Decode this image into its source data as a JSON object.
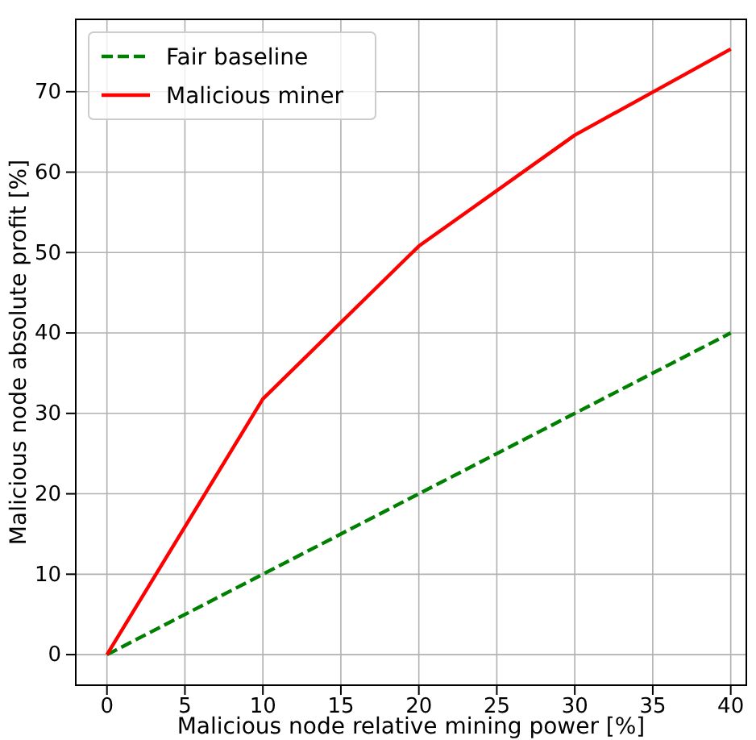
{
  "chart_data": {
    "type": "line",
    "xlabel": "Malicious node relative mining power [%]",
    "ylabel": "Malicious node absolute profit [%]",
    "x": [
      0,
      10,
      20,
      30,
      40
    ],
    "series": [
      {
        "name": "Fair baseline",
        "color": "#008000",
        "values": [
          0,
          10,
          20,
          30,
          40
        ],
        "line_style": "dashed"
      },
      {
        "name": "Malicious miner",
        "color": "#ff0000",
        "values": [
          0,
          31.8,
          50.8,
          64.6,
          75.3
        ],
        "line_style": "solid"
      }
    ],
    "xlim": [
      -2,
      41
    ],
    "xticks": [
      0,
      5,
      10,
      15,
      20,
      25,
      30,
      35,
      40
    ],
    "ylim": [
      -3.8,
      79
    ],
    "yticks": [
      0,
      10,
      20,
      30,
      40,
      50,
      60,
      70
    ],
    "grid": true,
    "legend": "top left"
  }
}
